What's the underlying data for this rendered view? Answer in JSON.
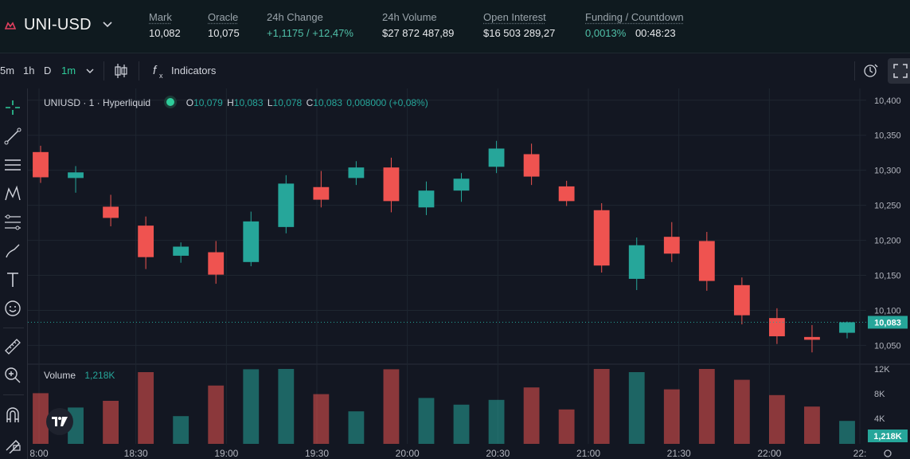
{
  "header": {
    "pair": "UNI-USD",
    "stats": [
      {
        "label": "Mark",
        "value": "10,082",
        "color": "#e8eaed"
      },
      {
        "label": "Oracle",
        "value": "10,075",
        "color": "#e8eaed"
      },
      {
        "label": "24h Change",
        "value": "+1,1175 / +12,47%",
        "color": "#50c0a8"
      },
      {
        "label": "24h Volume",
        "value": "$27 872 487,89",
        "color": "#e8eaed"
      },
      {
        "label": "Open Interest",
        "value": "$16 503 289,27",
        "color": "#e8eaed"
      }
    ],
    "funding": {
      "label": "Funding / Countdown",
      "rate": "0,0013%",
      "countdown": "00:48:23"
    }
  },
  "toolbar": {
    "intervals": [
      "5m",
      "1h",
      "D",
      "1m"
    ],
    "active_interval": "1m",
    "indicators_label": "Indicators"
  },
  "left_tools": [
    "crosshair-icon",
    "trend-line-icon",
    "horizontal-lines-icon",
    "pattern-icon",
    "fib-icon",
    "brush-icon",
    "text-icon",
    "emoji-icon",
    "ruler-icon",
    "zoom-in-icon",
    "magnet-icon",
    "lock-draw-icon"
  ],
  "legend": {
    "symbol": "UNIUSD · 1 · Hyperliquid",
    "o_label": "O",
    "o": "10,079",
    "h_label": "H",
    "h": "10,083",
    "l_label": "L",
    "l": "10,078",
    "c_label": "C",
    "c": "10,083",
    "change": "0,008000 (+0,08%)"
  },
  "volume_legend": {
    "label": "Volume",
    "value": "1,218K"
  },
  "colors": {
    "up": "#26a69a",
    "down": "#ef5350",
    "accent": "#2ecc9a",
    "background": "#131722"
  },
  "chart_data": {
    "type": "candlestick",
    "price_axis_ticks": [
      "10,400",
      "10,350",
      "10,300",
      "10,250",
      "10,200",
      "10,150",
      "10,100",
      "10,050"
    ],
    "current_price_label": "10,083",
    "current_price": 10.083,
    "ylim": [
      10.03,
      10.41
    ],
    "volume_axis_ticks": [
      "12K",
      "8K",
      "4K"
    ],
    "current_volume_label": "1,218K",
    "time_axis_ticks": [
      "8:00",
      "18:30",
      "19:00",
      "19:30",
      "20:00",
      "20:30",
      "21:00",
      "21:30",
      "22:00",
      "22:"
    ],
    "candles": [
      {
        "t": "18:20",
        "o": 10.326,
        "h": 10.335,
        "l": 10.282,
        "c": 10.29
      },
      {
        "t": "18:30",
        "o": 10.289,
        "h": 10.306,
        "l": 10.268,
        "c": 10.297
      },
      {
        "t": "18:40",
        "o": 10.248,
        "h": 10.265,
        "l": 10.22,
        "c": 10.232
      },
      {
        "t": "18:50",
        "o": 10.221,
        "h": 10.234,
        "l": 10.159,
        "c": 10.176
      },
      {
        "t": "19:00",
        "o": 10.178,
        "h": 10.197,
        "l": 10.168,
        "c": 10.191
      },
      {
        "t": "19:10",
        "o": 10.183,
        "h": 10.199,
        "l": 10.138,
        "c": 10.151
      },
      {
        "t": "19:20",
        "o": 10.169,
        "h": 10.241,
        "l": 10.163,
        "c": 10.227
      },
      {
        "t": "19:30",
        "o": 10.219,
        "h": 10.293,
        "l": 10.21,
        "c": 10.281
      },
      {
        "t": "19:40",
        "o": 10.276,
        "h": 10.299,
        "l": 10.247,
        "c": 10.258
      },
      {
        "t": "19:50",
        "o": 10.289,
        "h": 10.313,
        "l": 10.279,
        "c": 10.304
      },
      {
        "t": "20:00",
        "o": 10.304,
        "h": 10.318,
        "l": 10.24,
        "c": 10.256
      },
      {
        "t": "20:10",
        "o": 10.247,
        "h": 10.284,
        "l": 10.236,
        "c": 10.271
      },
      {
        "t": "20:20",
        "o": 10.271,
        "h": 10.296,
        "l": 10.255,
        "c": 10.288
      },
      {
        "t": "20:30",
        "o": 10.305,
        "h": 10.342,
        "l": 10.296,
        "c": 10.331
      },
      {
        "t": "20:40",
        "o": 10.323,
        "h": 10.338,
        "l": 10.279,
        "c": 10.291
      },
      {
        "t": "20:50",
        "o": 10.277,
        "h": 10.285,
        "l": 10.249,
        "c": 10.256
      },
      {
        "t": "21:00",
        "o": 10.243,
        "h": 10.253,
        "l": 10.154,
        "c": 10.164
      },
      {
        "t": "21:10",
        "o": 10.145,
        "h": 10.204,
        "l": 10.129,
        "c": 10.193
      },
      {
        "t": "21:20",
        "o": 10.205,
        "h": 10.226,
        "l": 10.169,
        "c": 10.181
      },
      {
        "t": "21:30",
        "o": 10.199,
        "h": 10.212,
        "l": 10.128,
        "c": 10.142
      },
      {
        "t": "21:40",
        "o": 10.136,
        "h": 10.147,
        "l": 10.08,
        "c": 10.093
      },
      {
        "t": "21:50",
        "o": 10.089,
        "h": 10.103,
        "l": 10.052,
        "c": 10.063
      },
      {
        "t": "22:00",
        "o": 10.062,
        "h": 10.079,
        "l": 10.04,
        "c": 10.058
      },
      {
        "t": "22:05",
        "o": 10.068,
        "h": 10.084,
        "l": 10.06,
        "c": 10.083
      }
    ]
  }
}
